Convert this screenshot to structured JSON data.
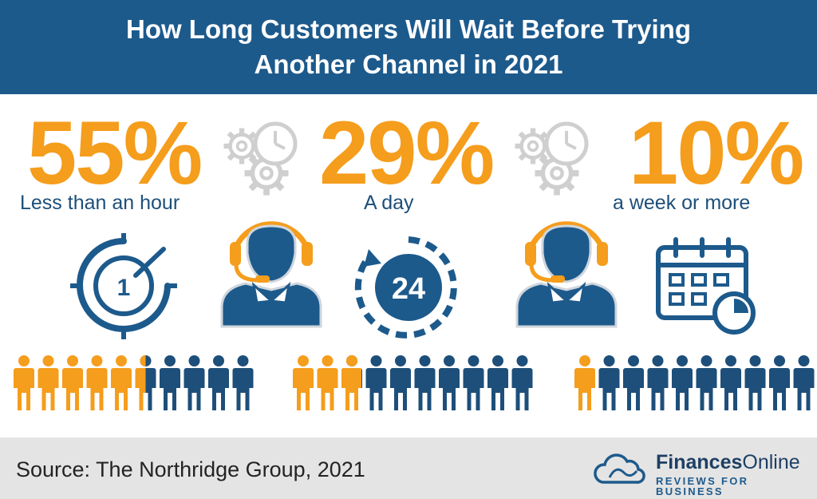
{
  "header": {
    "line1": "How Long Customers Will Wait Before Trying",
    "line2": "Another Channel in 2021"
  },
  "stats": [
    {
      "value": "55%",
      "label": "Less than an hour",
      "highlighted": 5.5,
      "total": 10,
      "icon": "stopwatch-1-icon"
    },
    {
      "value": "29%",
      "label": "A day",
      "highlighted": 2.9,
      "total": 10,
      "icon": "clock-24-icon"
    },
    {
      "value": "10%",
      "label": "a week or more",
      "highlighted": 1,
      "total": 10,
      "icon": "calendar-clock-icon"
    }
  ],
  "clock_labels": {
    "one": "1",
    "twentyfour": "24"
  },
  "colors": {
    "orange": "#f59d1c",
    "navy": "#1d4f7a",
    "header_blue": "#1d5a8c",
    "footer_gray": "#e4e4e4"
  },
  "footer": {
    "source": "Source: The Northridge Group, 2021",
    "brand_bold": "Finances",
    "brand_regular": "Online",
    "tagline": "REVIEWS FOR BUSINESS"
  }
}
